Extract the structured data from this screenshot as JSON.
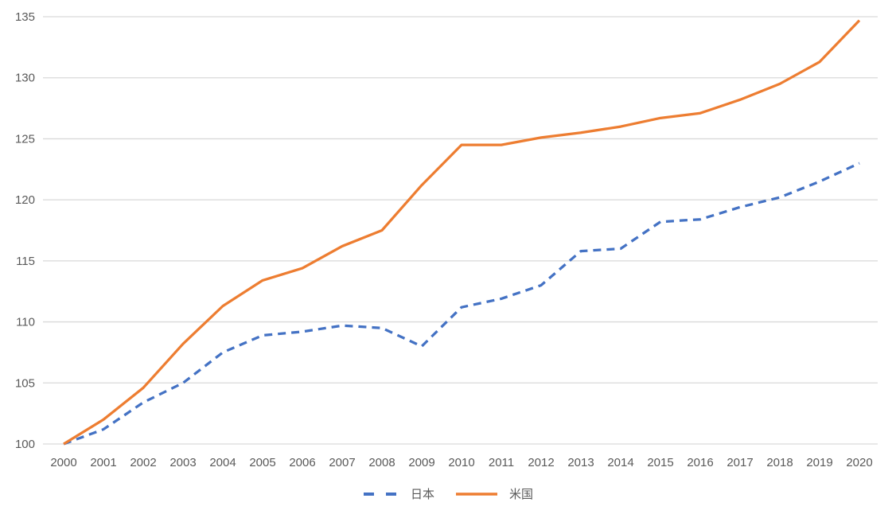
{
  "chart_data": {
    "type": "line",
    "x": [
      "2000",
      "2001",
      "2002",
      "2003",
      "2004",
      "2005",
      "2006",
      "2007",
      "2008",
      "2009",
      "2010",
      "2011",
      "2012",
      "2013",
      "2014",
      "2015",
      "2016",
      "2017",
      "2018",
      "2019",
      "2020"
    ],
    "series": [
      {
        "name": "日本",
        "color": "#4472C4",
        "style": "dashed",
        "values": [
          100,
          101.2,
          103.4,
          105.0,
          107.5,
          108.9,
          109.2,
          109.7,
          109.5,
          108.0,
          111.2,
          111.9,
          113.0,
          115.8,
          116.0,
          118.2,
          118.4,
          119.4,
          120.2,
          121.5,
          123.0
        ]
      },
      {
        "name": "米国",
        "color": "#ED7D31",
        "style": "solid",
        "values": [
          100,
          102.0,
          104.6,
          108.2,
          111.3,
          113.4,
          114.4,
          116.2,
          117.5,
          121.2,
          124.5,
          124.5,
          125.1,
          125.5,
          126.0,
          126.7,
          127.1,
          128.2,
          129.5,
          131.3,
          134.7
        ]
      }
    ],
    "title": "",
    "xlabel": "",
    "ylabel": "",
    "ylim": [
      100,
      135
    ],
    "yticks": [
      100,
      105,
      110,
      115,
      120,
      125,
      130,
      135
    ],
    "grid": true,
    "legend_position": "bottom"
  },
  "colors": {
    "background": "#FFFFFF",
    "gridline": "#D9D9D9",
    "axis_text": "#595959",
    "japan_line": "#4472C4",
    "us_line": "#ED7D31"
  }
}
